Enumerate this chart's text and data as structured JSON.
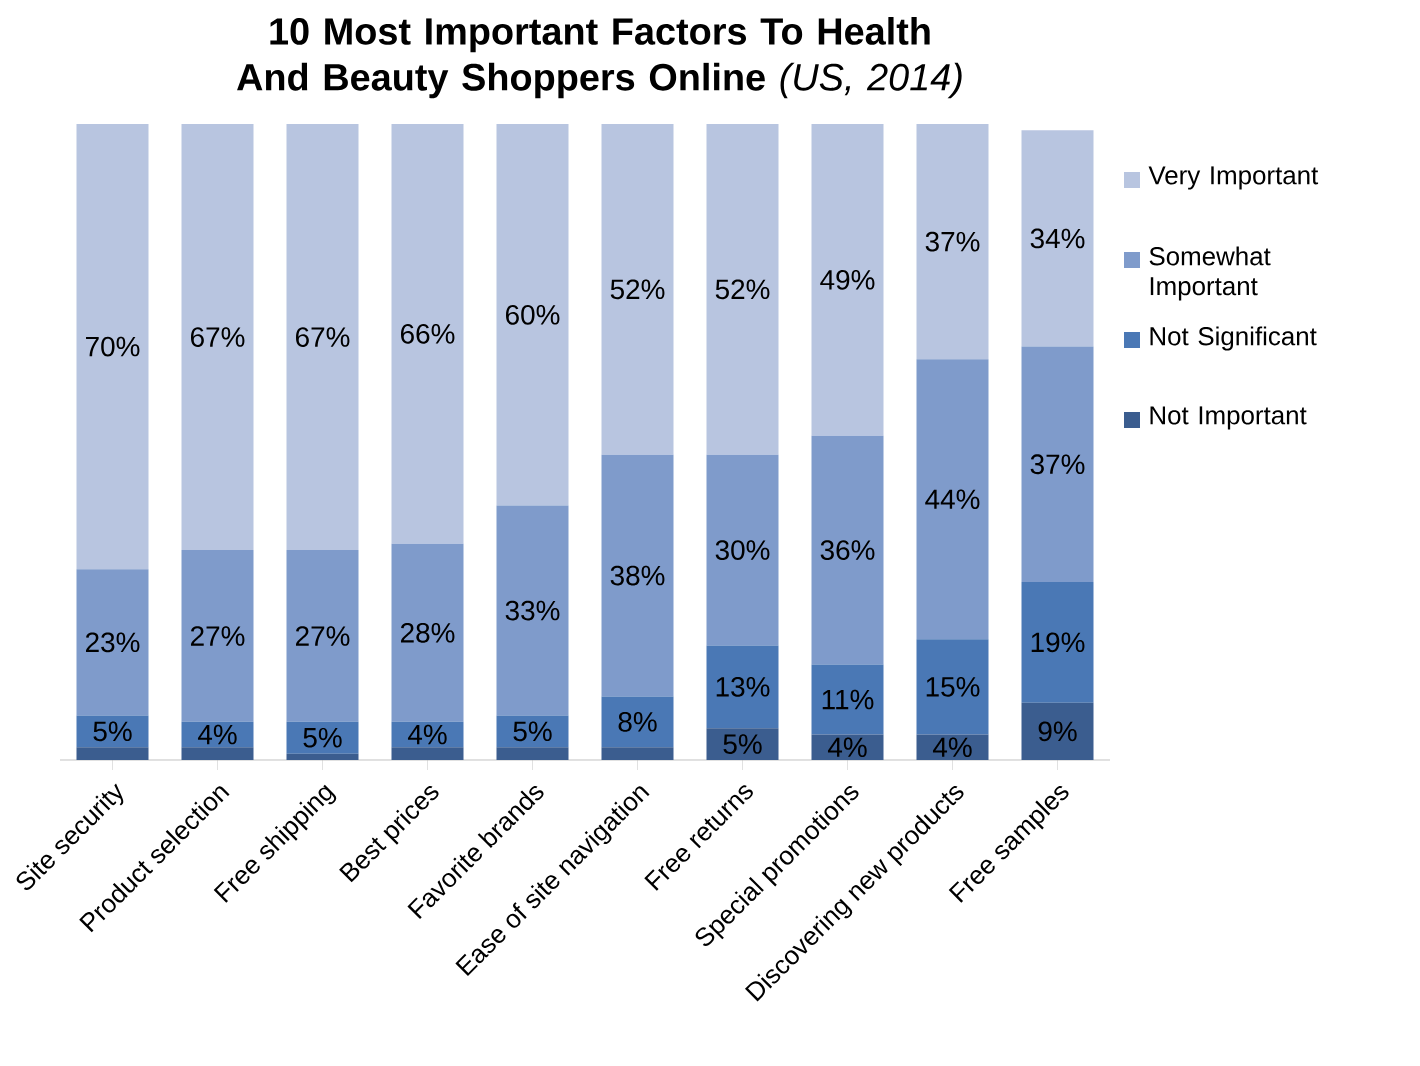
{
  "chart_data": {
    "type": "bar",
    "stacked": true,
    "title": "**10 Most Important Factors To Health And Beauty Shoppers Online** *(US, 2014)*",
    "categories": [
      "Site security",
      "Product selection",
      "Free shipping",
      "Best prices",
      "Favorite brands",
      "Ease of site navigation",
      "Free returns",
      "Special promotions",
      "Discovering new products",
      "Free samples"
    ],
    "ylim": [
      0,
      100
    ],
    "tick_labels": "x",
    "legend": "right",
    "series": [
      {
        "name": "Not Important",
        "color": "#3b5d8f",
        "values": [
          2,
          2,
          1,
          2,
          2,
          2,
          5,
          4,
          4,
          9
        ],
        "value_labels": [
          null,
          null,
          null,
          null,
          null,
          null,
          "5%",
          "4%",
          "4%",
          "9%"
        ]
      },
      {
        "name": "Not Significant",
        "color": "#4a78b5",
        "values": [
          5,
          4,
          5,
          4,
          5,
          8,
          13,
          11,
          15,
          19
        ],
        "value_labels": [
          "5%",
          "4%",
          "5%",
          "4%",
          "5%",
          "8%",
          "13%",
          "11%",
          "15%",
          "19%"
        ]
      },
      {
        "name": "Somewhat Important",
        "color": "#7f9bcb",
        "values": [
          23,
          27,
          27,
          28,
          33,
          38,
          30,
          36,
          44,
          37
        ],
        "value_labels": [
          "23%",
          "27%",
          "27%",
          "28%",
          "33%",
          "38%",
          "30%",
          "36%",
          "44%",
          "37%"
        ]
      },
      {
        "name": "Very Important",
        "color": "#b8c5e0",
        "values": [
          70,
          67,
          67,
          66,
          60,
          52,
          52,
          49,
          37,
          34
        ],
        "value_labels": [
          "70%",
          "67%",
          "67%",
          "66%",
          "60%",
          "52%",
          "52%",
          "49%",
          "37%",
          "34%"
        ]
      }
    ]
  }
}
